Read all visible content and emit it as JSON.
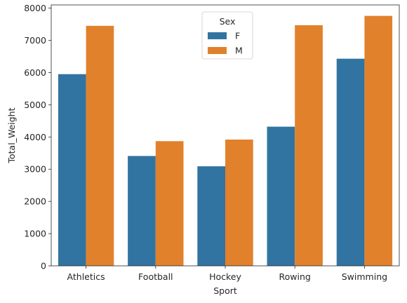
{
  "chart_data": {
    "type": "bar",
    "title": "",
    "xlabel": "Sport",
    "ylabel": "Total_Weight",
    "categories": [
      "Athletics",
      "Football",
      "Hockey",
      "Rowing",
      "Swimming"
    ],
    "series": [
      {
        "name": "F",
        "color": "#3274a1",
        "values": [
          5950,
          3410,
          3090,
          4320,
          6430
        ]
      },
      {
        "name": "M",
        "color": "#e1812c",
        "values": [
          7450,
          3870,
          3920,
          7470,
          7760
        ]
      }
    ],
    "ylim": [
      0,
      8100
    ],
    "yticks": [
      0,
      1000,
      2000,
      3000,
      4000,
      5000,
      6000,
      7000,
      8000
    ],
    "grid": false,
    "legend": {
      "title": "Sex",
      "position": "top-center"
    }
  }
}
